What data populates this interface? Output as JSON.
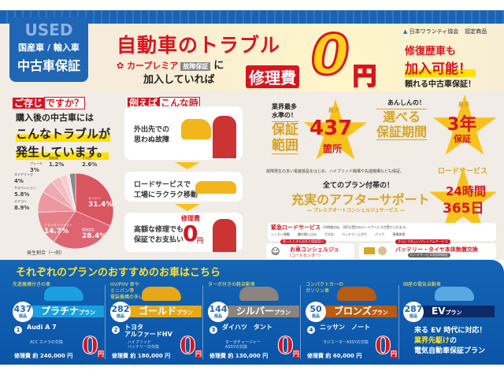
{
  "header": {
    "used": "USED",
    "domestic_import": "国産車 / 輸入車",
    "used_warranty": "中古車保証",
    "headline": "自動車のトラブル",
    "brand": "カープレミア",
    "brand_tag": "故障保証",
    "brand_ni": "に",
    "joined": "加入していれば",
    "repair_fee": "修理費",
    "zero": "0",
    "yen": "円",
    "association": "日本ワランティ協会",
    "certified": "認定商品",
    "right_l1": "修復歴車も",
    "right_l2": "加入可能！",
    "right_l3": "頼れる中古車保証！"
  },
  "intro": {
    "tag_fill": "ご存じ",
    "tag_outline": "ですか？",
    "line1": "購入後の中古車には",
    "line2": "こんなトラブルが",
    "line3": "発生しています。",
    "note": "発生割合（一例）"
  },
  "chart_data": {
    "type": "pie",
    "categories": [
      "エンジン",
      "電装部品",
      "トランスミッション",
      "エアコン",
      "サスペンション",
      "ステアリング",
      "ブレーキ",
      "過給器",
      "その他"
    ],
    "values": [
      31.4,
      28.4,
      14.7,
      8.9,
      5.8,
      4,
      3,
      1.2,
      2.6
    ],
    "colors": [
      "#d9555f",
      "#dd6470",
      "#e58088",
      "#eb98a0",
      "#efaab0",
      "#f2bcc0",
      "#f5ccd0",
      "#f8e0e2",
      "#8a8a8a"
    ],
    "labels": [
      "31.4%",
      "28.4%",
      "14.7%",
      "8.9%",
      "5.8%",
      "4%",
      "3%",
      "1.2%",
      "2.6%"
    ]
  },
  "example": {
    "tag_fill": "例えば",
    "tag_outline": "こんな時",
    "c1": "外出先での\n思わぬ故障",
    "c2": "ロードサービスで\n工場にラクラク移動",
    "c3": "高額な修理でも\n保証でお支払い",
    "c3_fee": "修理費",
    "c3_zero": "0",
    "c3_yen": "円"
  },
  "features": {
    "f1_top": "業界最多\n水準の！",
    "f1_main": "保証\n範囲",
    "f1_star_top": "最大",
    "f1_num": "437",
    "f1_unit": "箇所",
    "f2_top": "あんしんの！",
    "f2_main": "選べる\n保証期間",
    "f3_star_top": "最長",
    "f3_num": "3年",
    "f3_unit": "保証",
    "note": "故障発生の多い電装部品をはじめ、ハイブリッド機構や先進機構なども保証。",
    "after_top": "全てのプラン付帯の！",
    "after_main": "充実のアフターサポート",
    "after_sub": "― プレミアオートコンシェルジュサービス ―",
    "road_label": "ロードサービス",
    "road_24": "24時間",
    "road_365": "365日"
  },
  "services": {
    "emergency": "緊急ロードサービス",
    "emergency_note": "24時間対応、365日受付のロードサービスが受けられます。",
    "icons": [
      "レッカー移動",
      "鍵の閉じ込み",
      "ガス欠",
      "バッテリー上がり",
      "パンク",
      "現場修理"
    ],
    "concierge_tag": "困ったときもお任せ相談窓口",
    "concierge": "お車コンシェルジュ",
    "concierge_sub": "(コールセンター)",
    "premium_tag": "さらにうれしいプレミアムサービス",
    "premium": "バッテリー・タイヤ本体無償交換",
    "premium_sub": "ロードサービス利用時限定"
  },
  "plans": {
    "title": "それぞれのプランのおすすめのお車はこちら",
    "items": [
      {
        "desc": "先進機構付きの車",
        "count": "437",
        "count_unit": "部品",
        "name": "プラチナ",
        "suffix": "プラン",
        "color": "#1aa0e0",
        "rank": "1",
        "car": "Audi A 7",
        "part": "ACC カメラの交換",
        "cost": "修理費 約 240,000 円",
        "zero": "0",
        "yen": "円"
      },
      {
        "desc": "HV/PHV 車や\nミニバン等\n電装機構の多い車",
        "count": "282",
        "count_unit": "部品",
        "name": "ゴールド",
        "suffix": "プラン",
        "color": "#e6a817",
        "rank": "2",
        "car": "トヨタ\nアルファードHV",
        "part": "ハイブリッド\nバッテリーの交換",
        "cost": "修理費 約 180,000 円",
        "zero": "0",
        "yen": "円"
      },
      {
        "desc": "ターボ付きの軽自動車",
        "count": "144",
        "count_unit": "部品",
        "name": "シルバー",
        "suffix": "プラン",
        "color": "#8a8580",
        "rank": "3",
        "car": "ダイハツ　タント",
        "part": "ターボチャージャー\nASSYの交換",
        "cost": "修理費 約 130,000 円",
        "zero": "0",
        "yen": "円"
      },
      {
        "desc": "コンパクトカーの\nガソリン車",
        "count": "50",
        "count_unit": "部品",
        "name": "ブロンズ",
        "suffix": "プラン",
        "color": "#b85c14",
        "rank": "4",
        "car": "ニッサン　ノート",
        "part": "ラジエーターASSYの交換",
        "cost": "修理費 約 60,000 円",
        "zero": "0",
        "yen": "円"
      },
      {
        "desc": "国産の電気自動車",
        "count": "287",
        "count_unit": "部品",
        "name": "EV",
        "suffix": "プラン",
        "color": "#0c2a66",
        "ev1": "来る EV 時代に対応！",
        "ev2": "業界先駆け",
        "ev2b": "の",
        "ev3": "電気自動車保証プラン"
      }
    ]
  }
}
